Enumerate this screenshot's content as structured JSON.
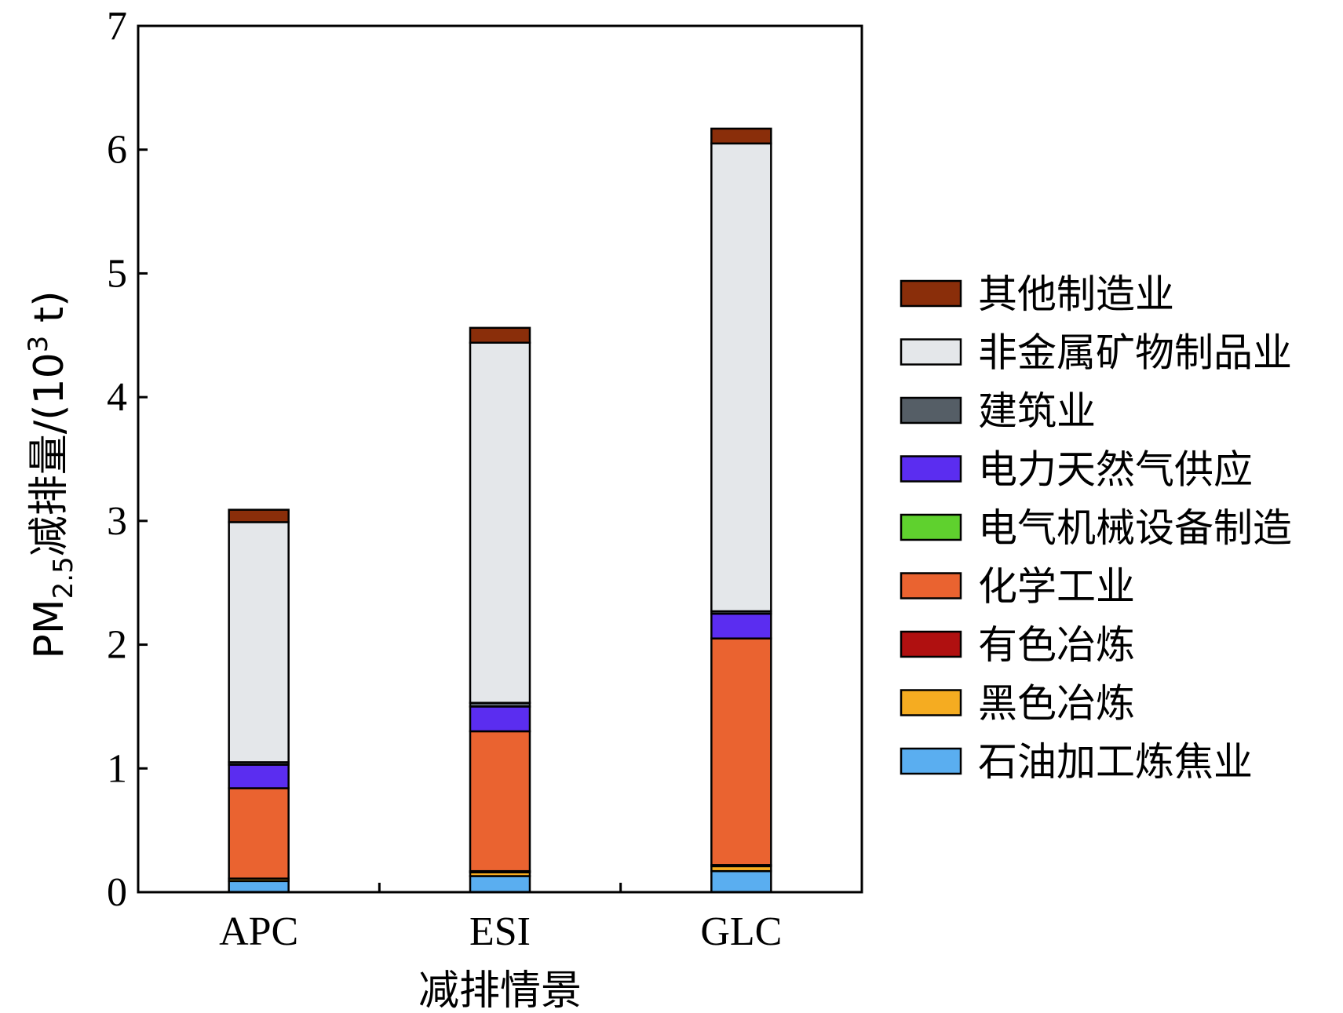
{
  "chart_data": {
    "type": "bar",
    "stacked": true,
    "xlabel": "减排情景",
    "ylabel_prefix": "PM",
    "ylabel_sub": "2.5",
    "ylabel_mid": "减排量/(10",
    "ylabel_sup": "3",
    "ylabel_suffix": " t)",
    "ylim": [
      0,
      7
    ],
    "yticks": [
      "0",
      "1",
      "2",
      "3",
      "4",
      "5",
      "6",
      "7"
    ],
    "categories": [
      "APC",
      "ESI",
      "GLC"
    ],
    "legend_position": "right",
    "series": [
      {
        "name": "石油加工炼焦业",
        "color": "#5aaef0",
        "values": [
          0.09,
          0.13,
          0.17
        ]
      },
      {
        "name": "黑色冶炼",
        "color": "#f5ac21",
        "values": [
          0.02,
          0.03,
          0.04
        ]
      },
      {
        "name": "有色冶炼",
        "color": "#b01010",
        "values": [
          0.0,
          0.01,
          0.01
        ]
      },
      {
        "name": "化学工业",
        "color": "#ea6330",
        "values": [
          0.73,
          1.13,
          1.83
        ]
      },
      {
        "name": "电气机械设备制造",
        "color": "#5fd12e",
        "values": [
          0.0,
          0.0,
          0.0
        ]
      },
      {
        "name": "电力天然气供应",
        "color": "#5b2df0",
        "values": [
          0.19,
          0.2,
          0.2
        ]
      },
      {
        "name": "建筑业",
        "color": "#555e66",
        "values": [
          0.02,
          0.03,
          0.02
        ]
      },
      {
        "name": "非金属矿物制品业",
        "color": "#e4e7ea",
        "values": [
          1.94,
          2.91,
          3.78
        ]
      },
      {
        "name": "其他制造业",
        "color": "#8a2e0a",
        "values": [
          0.1,
          0.12,
          0.12
        ]
      }
    ]
  }
}
